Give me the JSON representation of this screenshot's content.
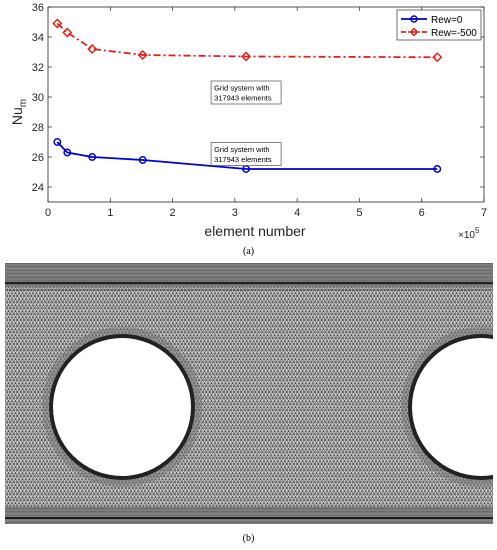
{
  "chart_data": {
    "type": "line",
    "xlabel": "element number",
    "ylabel_main": "Nu",
    "ylabel_sub": "m",
    "x_exponent_base": "×10",
    "x_exponent_power": "5",
    "xlim": [
      0,
      7
    ],
    "ylim": [
      23,
      36
    ],
    "xticks": [
      0,
      1,
      2,
      3,
      4,
      5,
      6,
      7
    ],
    "yticks": [
      24,
      26,
      28,
      30,
      32,
      34,
      36
    ],
    "grid": false,
    "legend_position": "top-right",
    "series": [
      {
        "name": "Rew=0",
        "color": "#0000cc",
        "line_style": "solid",
        "marker": "circle",
        "x": [
          0.15,
          0.31,
          0.71,
          1.52,
          3.18,
          6.25
        ],
        "y": [
          27.0,
          26.3,
          26.0,
          25.8,
          25.2,
          25.2
        ]
      },
      {
        "name": "Rew=-500",
        "color": "#e0201c",
        "line_style": "dashdot",
        "marker": "diamond",
        "x": [
          0.15,
          0.31,
          0.71,
          1.52,
          3.18,
          6.25
        ],
        "y": [
          34.9,
          34.3,
          33.2,
          32.8,
          32.7,
          32.65
        ]
      }
    ],
    "annotations": [
      {
        "line1": "Grid system with",
        "line2": "317943 elements",
        "x": 3.18,
        "y": 30.3
      },
      {
        "line1": "Grid system with",
        "line2": "317943 elements",
        "x": 3.18,
        "y": 26.2
      }
    ]
  },
  "captions": {
    "a": "(a)",
    "b": "(b)"
  },
  "mesh_image": {
    "background_color": "#d0d0d0",
    "mesh_line_color": "#1a1a1a",
    "cylinder_color": "#ffffff"
  }
}
